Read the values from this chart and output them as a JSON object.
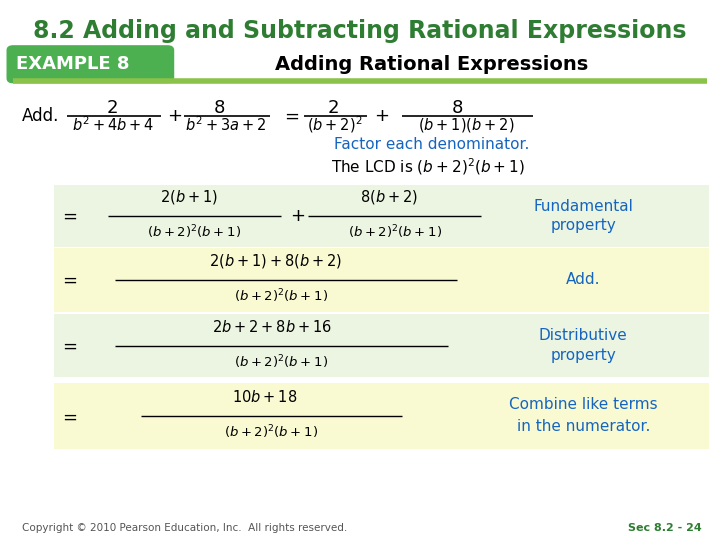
{
  "title": "8.2 Adding and Subtracting Rational Expressions",
  "title_color": "#2E7D32",
  "title_fontsize": 17,
  "bg_color": "#FFFFFF",
  "example_label": "EXAMPLE 8",
  "example_bg": "#4CAF50",
  "example_text_color": "#FFFFFF",
  "subtitle": "Adding Rational Expressions",
  "subtitle_color": "#000000",
  "header_line_color": "#8BC34A",
  "row_colors": [
    "#EBF5E1",
    "#FAFAD2",
    "#EBF5E1",
    "#FAFAD2"
  ],
  "comment_color": "#1565C0",
  "footer_text": "Copyright © 2010 Pearson Education, Inc.  All rights reserved.",
  "footer_right": "Sec 8.2 - 24",
  "footer_color": "#2E7D32"
}
